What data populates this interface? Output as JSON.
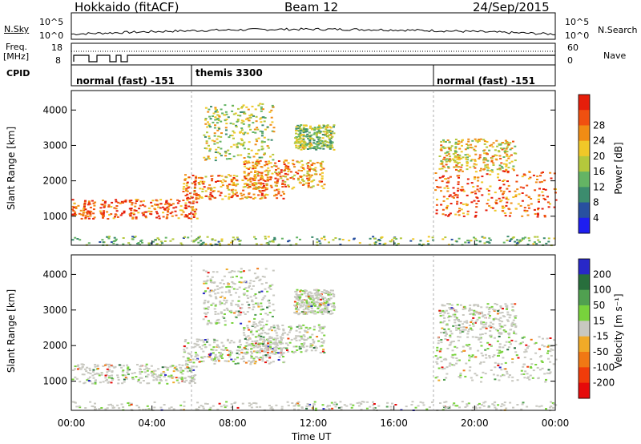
{
  "header": {
    "title": "Hokkaido (fitACF)",
    "beam": "Beam 12",
    "date": "24/Sep/2015"
  },
  "top_panels": {
    "nsky_label": "N.Sky",
    "nsky_ticks": [
      "10^5",
      "10^0"
    ],
    "nsearch_ticks": [
      "10^5",
      "10^0"
    ],
    "nsearch_label": "N.Search",
    "freq_label_1": "Freq.",
    "freq_label_2": "[MHz]",
    "freq_ticks": [
      "18",
      "8"
    ],
    "nave_ticks": [
      "60",
      "0"
    ],
    "nave_label": "Nave",
    "cpid_label": "CPID",
    "cpid_segments": [
      "normal (fast) -151",
      "themis 3300",
      "normal (fast) -151"
    ]
  },
  "chart_data": [
    {
      "type": "heatmap",
      "title": "",
      "ylabel": "Slant Range [km]",
      "xlabel": "",
      "x_ticks": [
        "00:00",
        "04:00",
        "08:00",
        "12:00",
        "16:00",
        "20:00",
        "00:00"
      ],
      "y_ticks": [
        1000,
        2000,
        3000,
        4000
      ],
      "ylim": [
        180,
        4550
      ],
      "xlim_hours": [
        0,
        24
      ],
      "colorbar": {
        "label": "Power [dB]",
        "ticks": [
          4,
          8,
          12,
          16,
          20,
          24,
          28
        ],
        "colors": [
          "#1e1ef0",
          "#2850a0",
          "#3c8c6e",
          "#64b464",
          "#b4c83c",
          "#f0c828",
          "#f08c14",
          "#f05010",
          "#e61e0a"
        ]
      }
    },
    {
      "type": "heatmap",
      "title": "",
      "ylabel": "Slant Range [km]",
      "xlabel": "Time UT",
      "x_ticks": [
        "00:00",
        "04:00",
        "08:00",
        "12:00",
        "16:00",
        "20:00",
        "00:00"
      ],
      "y_ticks": [
        1000,
        2000,
        3000,
        4000
      ],
      "ylim": [
        180,
        4550
      ],
      "xlim_hours": [
        0,
        24
      ],
      "colorbar": {
        "label": "Velocity [m s⁻¹]",
        "ticks": [
          200,
          100,
          50,
          15,
          -15,
          -50,
          -100,
          -200
        ],
        "colors": [
          "#2828c8",
          "#286e3c",
          "#50a050",
          "#78d23c",
          "#c8c8c0",
          "#f0aa28",
          "#f07814",
          "#f03c0a",
          "#e60a0a"
        ]
      }
    }
  ]
}
